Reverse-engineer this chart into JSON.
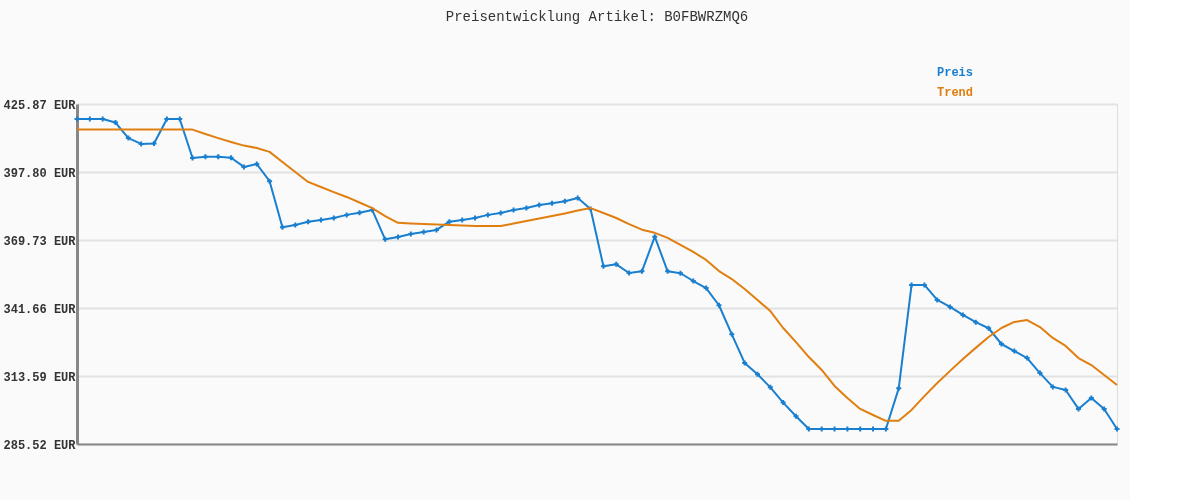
{
  "chart_data": {
    "type": "line",
    "title": "Preisentwicklung Artikel: B0FBWRZMQ6",
    "categories": [
      null,
      null,
      null,
      null,
      null,
      null,
      null,
      null,
      null,
      null,
      null,
      null,
      null,
      null,
      null,
      null,
      null,
      null,
      null,
      null,
      null,
      null,
      null,
      null,
      null,
      null,
      null,
      null,
      null,
      null,
      null,
      null,
      null,
      null,
      null,
      null,
      null,
      null,
      null,
      null,
      null,
      null,
      null,
      null,
      null,
      null,
      null,
      null,
      null,
      null,
      null,
      null,
      null,
      null,
      null,
      null,
      null,
      null,
      null,
      null,
      null,
      null,
      null,
      null,
      null,
      null,
      null,
      null,
      null,
      null,
      null,
      null,
      null,
      null,
      null,
      null,
      null,
      null,
      null,
      null,
      null,
      null
    ],
    "series": [
      {
        "name": "Preis",
        "color": "#1a7fcf",
        "marker": "cross",
        "values": [
          419.7,
          419.7,
          419.7,
          418.2,
          411.8,
          409.4,
          409.6,
          419.7,
          419.7,
          403.6,
          404.1,
          404.1,
          403.7,
          399.9,
          401.1,
          394.0,
          375.0,
          375.9,
          377.3,
          378.0,
          378.8,
          380.1,
          381.0,
          382.1,
          370.0,
          371.0,
          372.2,
          373.0,
          373.9,
          377.3,
          378.0,
          378.8,
          380.1,
          380.9,
          382.1,
          382.9,
          384.2,
          384.9,
          385.7,
          387.1,
          382.5,
          358.9,
          359.7,
          356.1,
          356.8,
          371.1,
          356.8,
          356.0,
          352.8,
          349.9,
          342.8,
          330.8,
          319.0,
          314.3,
          308.9,
          302.6,
          297.0,
          291.7,
          291.7,
          291.7,
          291.7,
          291.7,
          291.7,
          291.7,
          308.5,
          351.2,
          351.2,
          345.0,
          342.1,
          338.8,
          335.8,
          333.3,
          326.8,
          323.9,
          321.0,
          314.8,
          309.1,
          307.8,
          300.0,
          304.5,
          300.0,
          291.7
        ]
      },
      {
        "name": "Trend",
        "color": "#e07f10",
        "marker": "none",
        "values": [
          415.3,
          415.3,
          415.3,
          415.3,
          415.3,
          415.3,
          415.3,
          415.3,
          415.3,
          415.3,
          413.5,
          411.8,
          410.2,
          408.7,
          407.7,
          406.1,
          401.9,
          397.8,
          393.7,
          391.6,
          389.5,
          387.5,
          385.2,
          382.9,
          379.6,
          376.8,
          376.5,
          376.3,
          376.1,
          375.9,
          375.7,
          375.5,
          375.5,
          375.5,
          376.5,
          377.6,
          378.6,
          379.6,
          380.7,
          381.9,
          382.9,
          380.9,
          378.8,
          376.3,
          374.0,
          372.7,
          370.6,
          367.7,
          364.8,
          361.5,
          356.9,
          353.6,
          349.5,
          345.0,
          340.4,
          333.4,
          327.6,
          321.4,
          316.1,
          309.5,
          304.5,
          300.0,
          297.5,
          295.1,
          295.1,
          299.6,
          305.3,
          310.7,
          315.7,
          320.6,
          325.2,
          329.7,
          333.4,
          335.9,
          336.7,
          333.8,
          329.3,
          326.0,
          321.0,
          318.1,
          314.0,
          309.9
        ]
      }
    ],
    "ylim": [
      285.52,
      425.87
    ],
    "yticks": [
      {
        "value": 285.52,
        "label": "285.52 EUR"
      },
      {
        "value": 313.59,
        "label": "313.59 EUR"
      },
      {
        "value": 341.66,
        "label": "341.66 EUR"
      },
      {
        "value": 369.73,
        "label": "369.73 EUR"
      },
      {
        "value": 397.8,
        "label": "397.80 EUR"
      },
      {
        "value": 425.87,
        "label": "425.87 EUR"
      }
    ],
    "grid": "y",
    "legend": "top right",
    "tick_labels": "y",
    "line_style": "solid"
  }
}
